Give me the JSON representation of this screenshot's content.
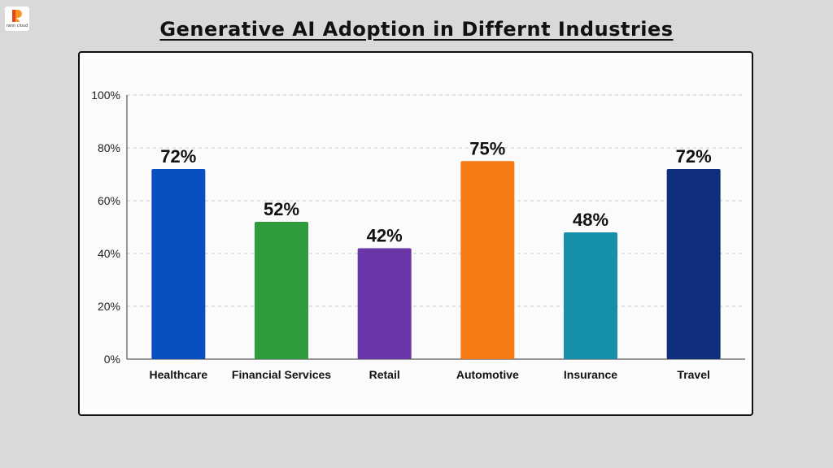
{
  "logo": {
    "text": "rann cloud",
    "colors": [
      "#f7931e",
      "#e8461a"
    ]
  },
  "page_title": "Generative AI Adoption in Differnt Industries",
  "chart_data": {
    "type": "bar",
    "title": "",
    "xlabel": "",
    "ylabel": "",
    "categories": [
      "Healthcare",
      "Financial Services",
      "Retail",
      "Automotive",
      "Insurance",
      "Travel"
    ],
    "values": [
      72,
      52,
      42,
      75,
      48,
      72
    ],
    "value_labels": [
      "72%",
      "52%",
      "42%",
      "75%",
      "48%",
      "72%"
    ],
    "colors": [
      "#0a4fc2",
      "#2e9b3c",
      "#6a36a8",
      "#f57a14",
      "#1590a8",
      "#0f2e7e"
    ],
    "ylim": [
      0,
      100
    ],
    "yticks": [
      0,
      20,
      40,
      60,
      80,
      100
    ],
    "ytick_labels": [
      "0%",
      "20%",
      "40%",
      "60%",
      "80%",
      "100%"
    ],
    "grid": true,
    "grid_style": "dashed",
    "legend": "none"
  }
}
